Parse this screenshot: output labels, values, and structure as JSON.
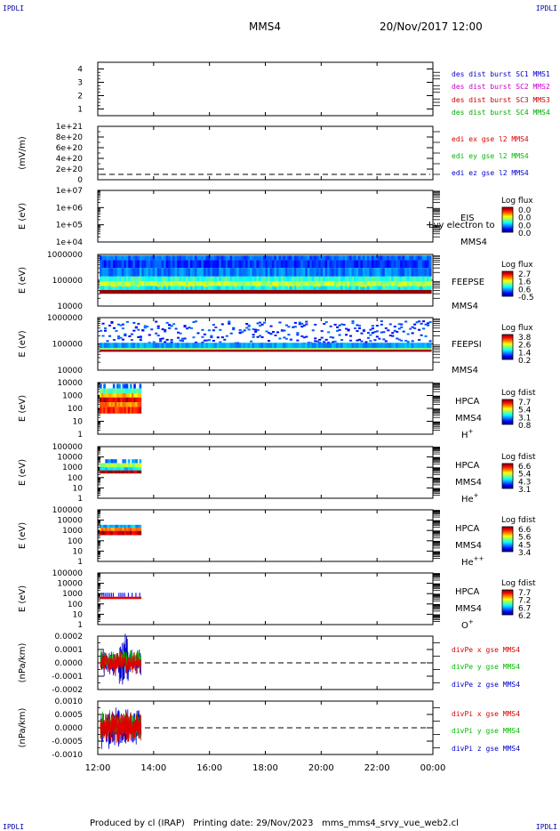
{
  "corner_label": "IPDLI",
  "header": {
    "spacecraft": "MMS4",
    "datetime": "20/Nov/2017 12:00"
  },
  "footer": "Produced by cl (IRAP)   Printing date: 29/Nov/2023   mms_mms4_srvy_vue_web2.cl",
  "colors": {
    "mms1": "#0000cc",
    "mms2": "#cc00cc",
    "mms3": "#cc0000",
    "mms4": "#00aa00",
    "x": "#dd0000",
    "y": "#00bb00",
    "z": "#0000cc"
  },
  "chart_data": {
    "type": "stacked-timeseries",
    "x_ticks": [
      "12:00",
      "14:00",
      "16:00",
      "18:00",
      "20:00",
      "22:00",
      "00:00"
    ],
    "x_range_hours": [
      12,
      24
    ],
    "data_end_hour": 13.55,
    "panels": [
      {
        "id": "dist",
        "ylabel": "",
        "yticks": [
          "4",
          "3",
          "2",
          "1"
        ],
        "ylim": [
          0.5,
          4.5
        ],
        "legend": [
          "des dist burst SC1 MMS1",
          "des dist burst SC2 MMS2",
          "des dist burst SC3 MMS3",
          "des dist burst SC4 MMS4"
        ]
      },
      {
        "id": "edi",
        "ylabel": "(mV/m)",
        "yticks": [
          "1e+21",
          "8e+20",
          "6e+20",
          "4e+20",
          "2e+20",
          "0"
        ],
        "ylim": [
          0,
          1e+21
        ],
        "legend": [
          "edi ex gse l2 MMS4",
          "edi ey gse l2 MMS4",
          "edi ez gse l2 MMS4"
        ],
        "zero_line": true
      },
      {
        "id": "eis",
        "ylabel": "E (eV)",
        "yticks": [
          "1e+07",
          "1e+06",
          "1e+05",
          "1e+04"
        ],
        "ylim": [
          10000,
          10000000
        ],
        "instrument": "EIS",
        "instrument_sub": "MMS4",
        "overlay_text": "Lvy electron to",
        "cbar_title": "Log flux",
        "cbar_ticks": [
          "0.0",
          "0.0",
          "0.0",
          "0.0"
        ]
      },
      {
        "id": "feepse",
        "ylabel": "E (eV)",
        "yticks": [
          "1000000",
          "100000",
          "10000"
        ],
        "ylim": [
          10000,
          1000000
        ],
        "instrument": "FEEPSE",
        "instrument_sub": "MMS4",
        "cbar_title": "Log flux",
        "cbar_ticks": [
          "2.7",
          "1.6",
          "0.6",
          "-0.5"
        ]
      },
      {
        "id": "feepsi",
        "ylabel": "E (eV)",
        "yticks": [
          "1000000",
          "100000",
          "10000"
        ],
        "ylim": [
          10000,
          1000000
        ],
        "instrument": "FEEPSI",
        "instrument_sub": "MMS4",
        "cbar_title": "Log flux",
        "cbar_ticks": [
          "3.8",
          "2.6",
          "1.4",
          "0.2"
        ]
      },
      {
        "id": "hpca_h",
        "ylabel": "E (eV)",
        "yticks": [
          "10000",
          "1000",
          "100",
          "10",
          "1"
        ],
        "ylim": [
          1,
          10000
        ],
        "instrument": "HPCA",
        "instrument_sub": "MMS4",
        "species": "H",
        "species_sup": "+",
        "cbar_title": "Log fdist",
        "cbar_ticks": [
          "7.7",
          "5.4",
          "3.1",
          "0.8"
        ]
      },
      {
        "id": "hpca_he",
        "ylabel": "E (eV)",
        "yticks": [
          "100000",
          "10000",
          "1000",
          "100",
          "10",
          "1"
        ],
        "ylim": [
          1,
          100000
        ],
        "instrument": "HPCA",
        "instrument_sub": "MMS4",
        "species": "He",
        "species_sup": "+",
        "cbar_title": "Log fdist",
        "cbar_ticks": [
          "6.6",
          "5.4",
          "4.3",
          "3.1"
        ]
      },
      {
        "id": "hpca_he2",
        "ylabel": "E (eV)",
        "yticks": [
          "100000",
          "10000",
          "1000",
          "100",
          "10",
          "1"
        ],
        "ylim": [
          1,
          100000
        ],
        "instrument": "HPCA",
        "instrument_sub": "MMS4",
        "species": "He",
        "species_sup": "++",
        "cbar_title": "Log fdist",
        "cbar_ticks": [
          "6.6",
          "5.6",
          "4.5",
          "3.4"
        ]
      },
      {
        "id": "hpca_o",
        "ylabel": "E (eV)",
        "yticks": [
          "100000",
          "10000",
          "1000",
          "100",
          "10",
          "1"
        ],
        "ylim": [
          1,
          100000
        ],
        "instrument": "HPCA",
        "instrument_sub": "MMS4",
        "species": "O",
        "species_sup": "+",
        "cbar_title": "Log fdist",
        "cbar_ticks": [
          "7.7",
          "7.2",
          "6.7",
          "6.2"
        ]
      },
      {
        "id": "divpe",
        "ylabel": "(nPa/km)",
        "yticks": [
          "0.0002",
          "0.0001",
          "0.0000",
          "-0.0001",
          "-0.0002"
        ],
        "ylim": [
          -0.0002,
          0.0002
        ],
        "legend": [
          "divPe x gse MMS4",
          "divPe y gse MMS4",
          "divPe z gse MMS4"
        ],
        "zero_line": true
      },
      {
        "id": "divpi",
        "ylabel": "(nPa/km)",
        "yticks": [
          "0.0010",
          "0.0005",
          "0.0000",
          "-0.0005",
          "-0.0010"
        ],
        "ylim": [
          -0.00125,
          0.00125
        ],
        "legend": [
          "divPi x gse MMS4",
          "divPi y gse MMS4",
          "divPi z gse MMS4"
        ],
        "zero_line": true
      }
    ]
  }
}
